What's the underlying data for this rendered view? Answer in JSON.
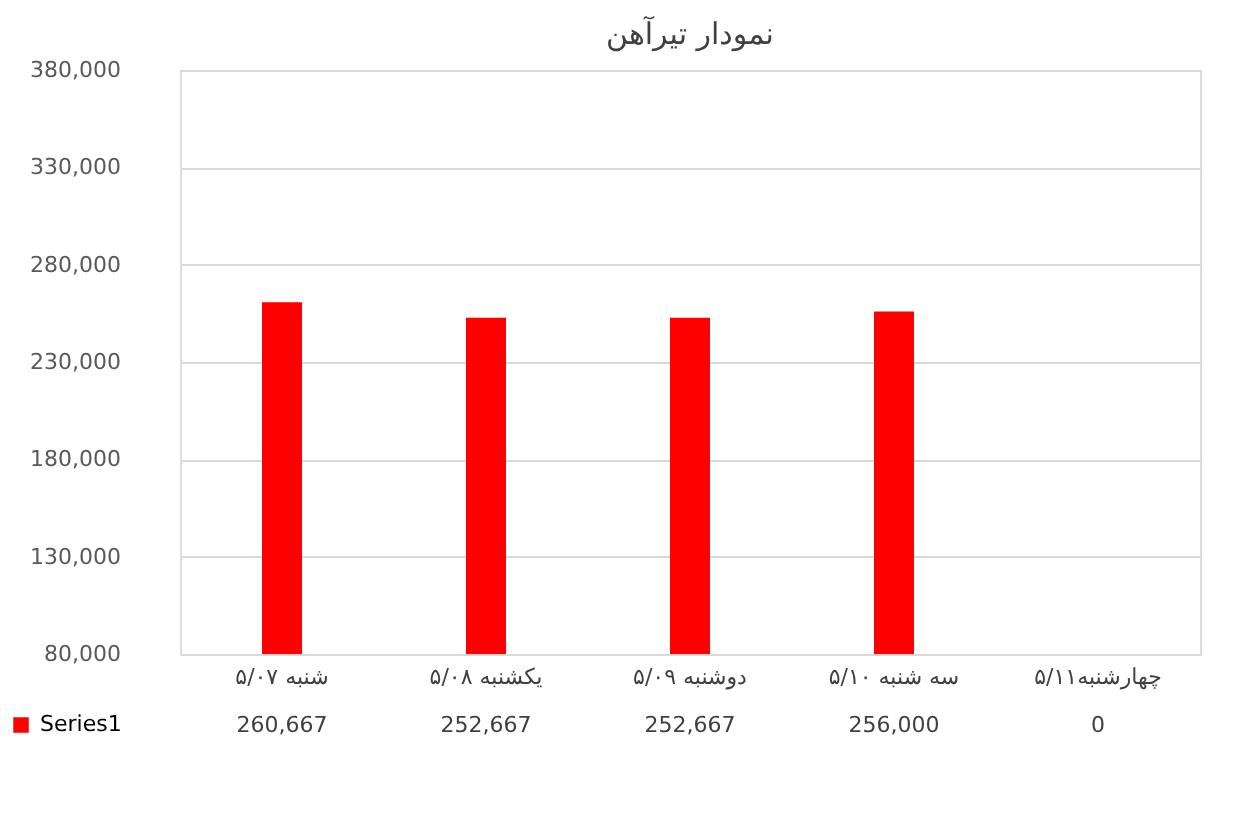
{
  "chart_data": {
    "type": "bar",
    "title": "نمودار تیرآهن",
    "categories": [
      "شنبه ۵/۰۷",
      "یکشنبه ۵/۰۸",
      "دوشنبه ۵/۰۹",
      "سه شنبه ۵/۱۰",
      "چهارشنبه۵/۱۱"
    ],
    "series": [
      {
        "name": "Series1",
        "color": "#ff0000",
        "values": [
          260667,
          252667,
          252667,
          256000,
          null
        ],
        "value_labels": [
          "260,667",
          "252,667",
          "252,667",
          "256,000",
          "0"
        ]
      }
    ],
    "ylim": [
      80000,
      380000
    ],
    "yticks": [
      {
        "value": 80000,
        "label": "80,000"
      },
      {
        "value": 130000,
        "label": "130,000"
      },
      {
        "value": 180000,
        "label": "180,000"
      },
      {
        "value": 230000,
        "label": "230,000"
      },
      {
        "value": 280000,
        "label": "280,000"
      },
      {
        "value": 330000,
        "label": "330,000"
      },
      {
        "value": 380000,
        "label": "380,000"
      }
    ],
    "grid": "y",
    "legend": "bottom left"
  }
}
